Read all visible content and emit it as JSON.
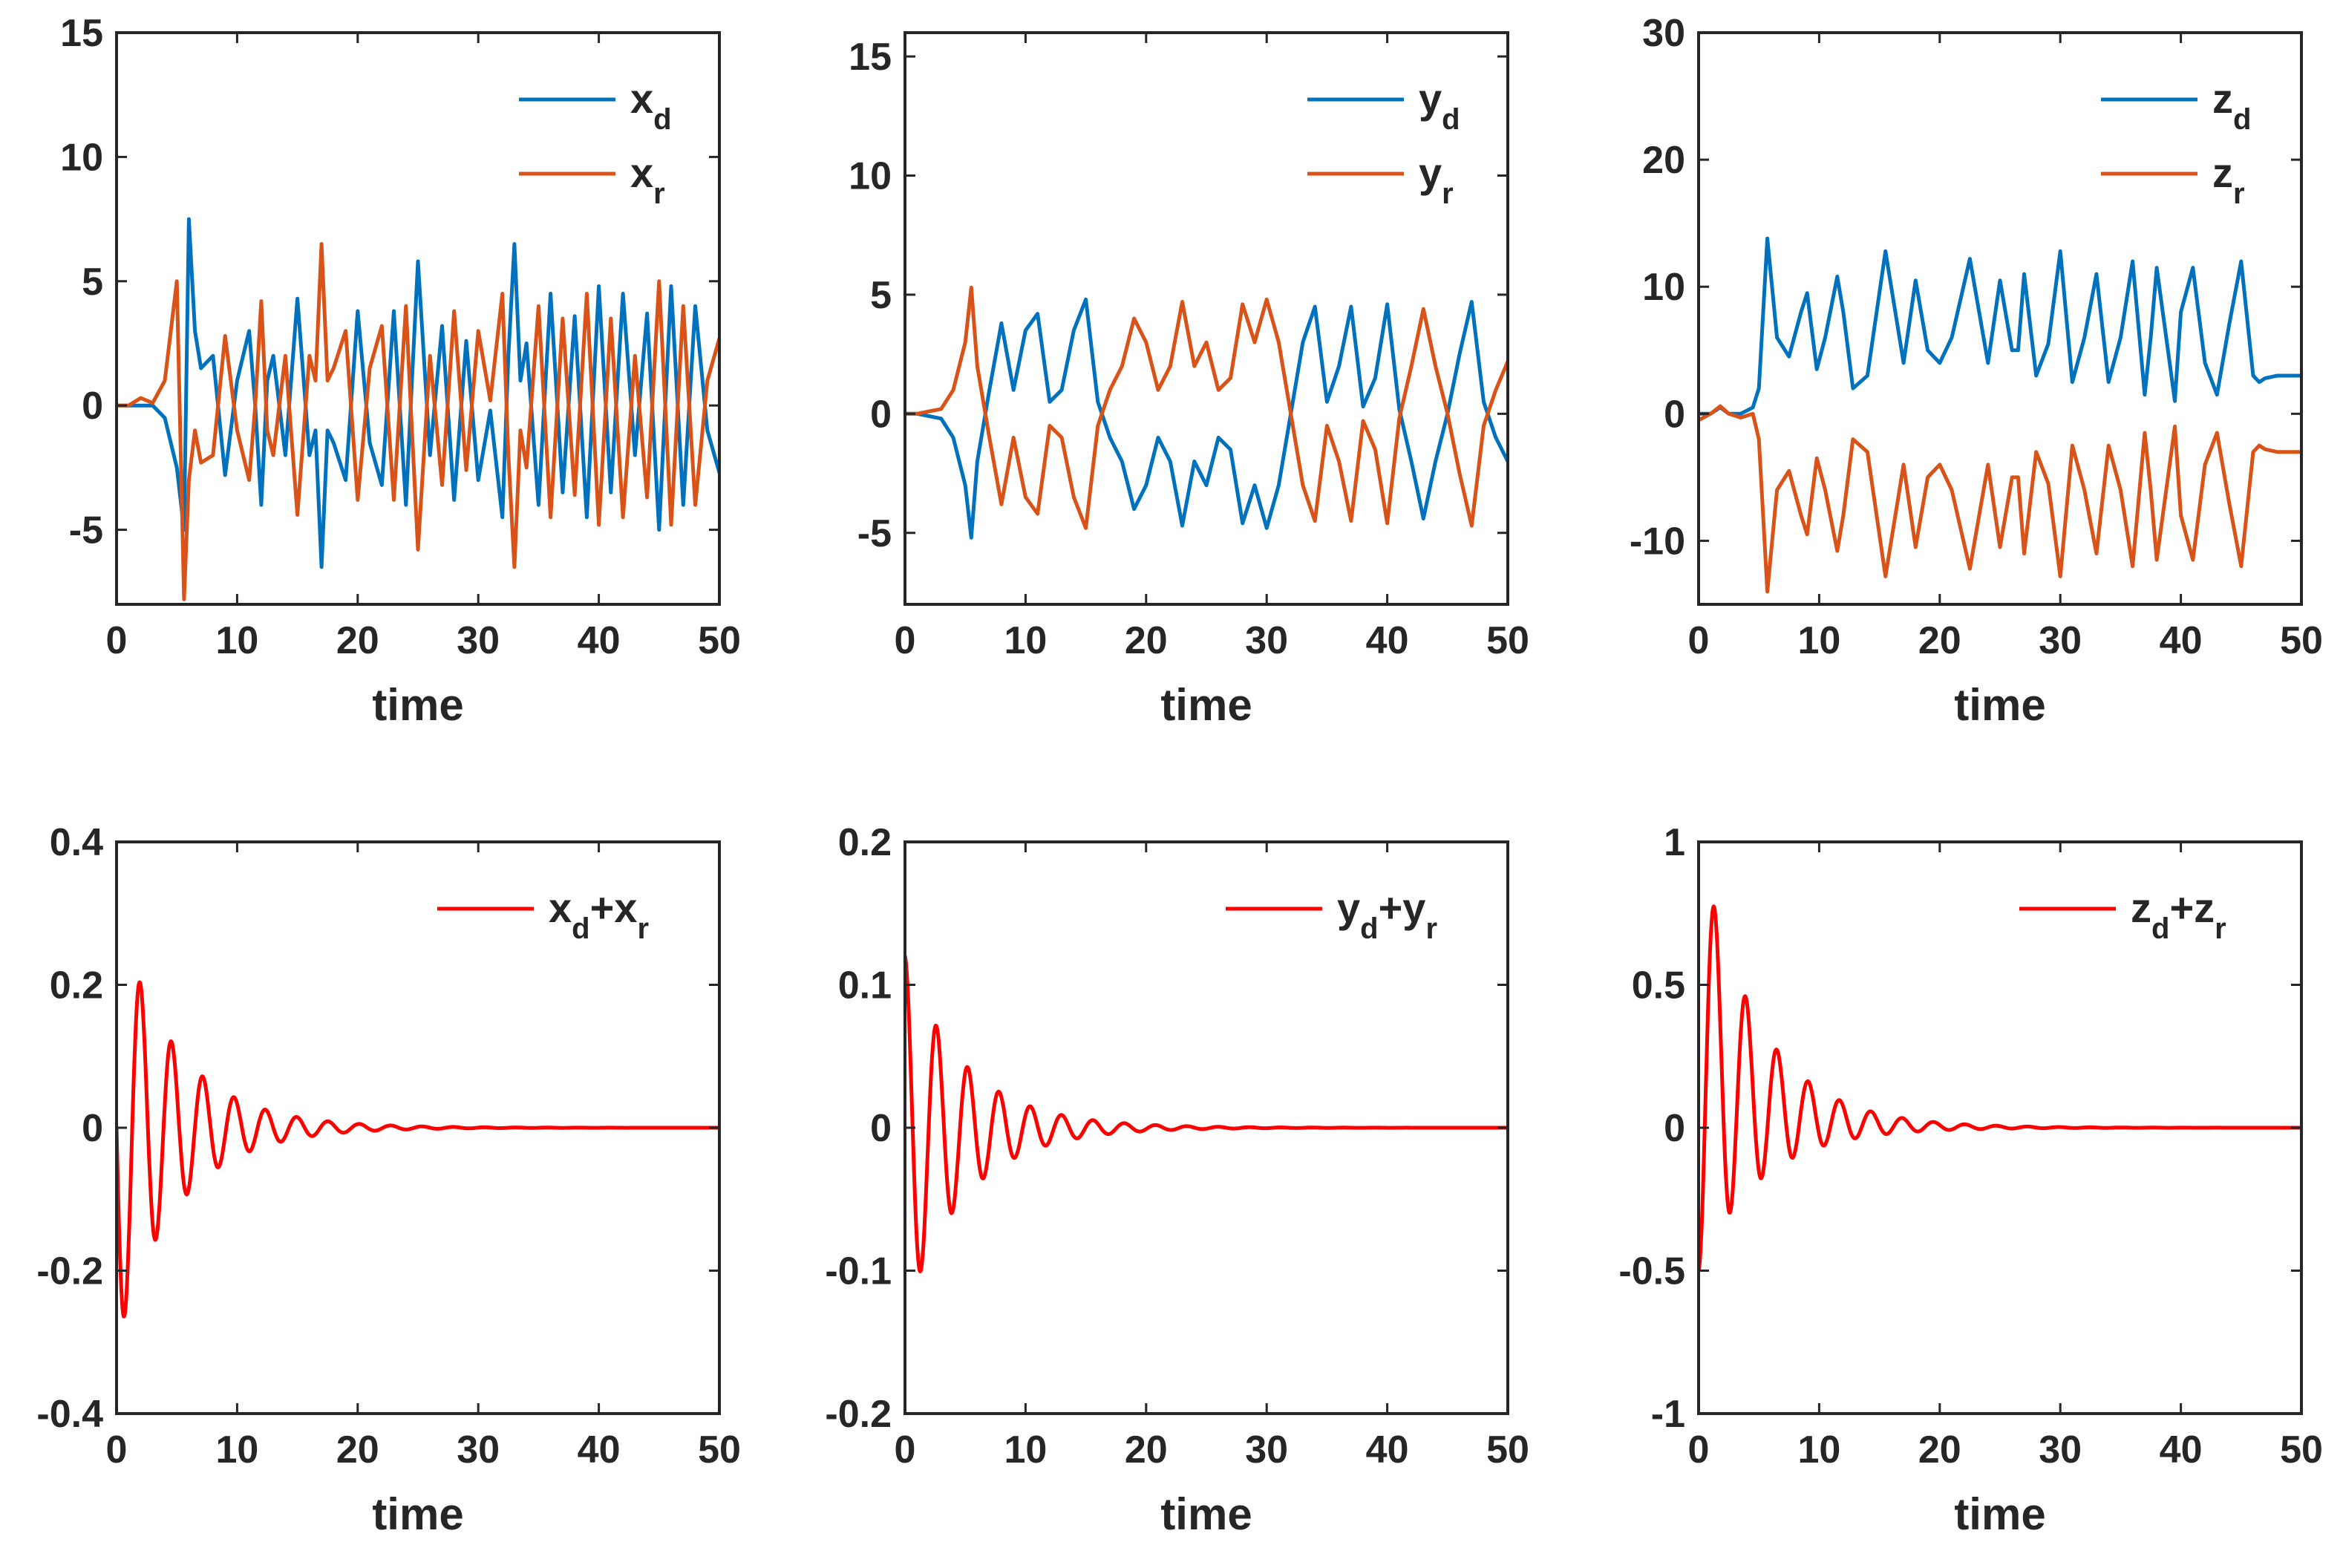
{
  "chart_data": [
    {
      "type": "line",
      "xlabel": "time",
      "xlim": [
        0,
        50
      ],
      "ylim": [
        -8,
        15
      ],
      "xticks": [
        "0",
        "10",
        "20",
        "30",
        "40",
        "50"
      ],
      "yticks": [
        "-5",
        "0",
        "5",
        "10",
        "15"
      ],
      "ytick_values": [
        -5,
        0,
        5,
        10,
        15
      ],
      "legend_location": "top-right",
      "series": [
        {
          "name": "x_d",
          "label": "x",
          "sub": "d",
          "color": "#0072BD",
          "x": [
            0,
            1,
            2,
            3,
            4,
            5,
            5.6,
            6,
            6.5,
            7,
            8,
            9,
            10,
            11,
            11.5,
            12,
            12.5,
            13,
            14,
            15,
            16,
            16.5,
            17,
            17.5,
            18,
            19,
            20,
            21,
            22,
            23,
            24,
            24.5,
            25,
            26,
            27,
            28,
            29,
            30,
            31,
            32,
            32.5,
            33,
            33.5,
            34,
            35,
            36,
            37,
            38,
            39,
            40,
            41,
            42,
            43,
            44,
            45,
            46,
            47,
            48,
            49,
            50
          ],
          "y": [
            0,
            0,
            0,
            0,
            -0.5,
            -2.5,
            -5,
            7.5,
            3,
            1.5,
            2,
            -2.8,
            1,
            3,
            0,
            -4,
            1,
            2,
            -2,
            4.3,
            -2,
            -1,
            -6.5,
            -1,
            -1.5,
            -3,
            3.8,
            -1.5,
            -3.2,
            3.8,
            -4,
            1,
            5.8,
            -2,
            3.2,
            -3.8,
            2.6,
            -3,
            -0.2,
            -4.5,
            2,
            6.5,
            1,
            2.5,
            -4,
            4.5,
            -3.5,
            3.6,
            -4.5,
            4.8,
            -3.5,
            4.5,
            -2,
            3.7,
            -5,
            4.8,
            -4,
            4,
            -1,
            -2.7
          ]
        },
        {
          "name": "x_r",
          "label": "x",
          "sub": "r",
          "color": "#D95319",
          "x": [
            0,
            1,
            2,
            3,
            4,
            5,
            5.6,
            6,
            6.5,
            7,
            8,
            9,
            10,
            11,
            11.5,
            12,
            12.5,
            13,
            14,
            15,
            16,
            16.5,
            17,
            17.5,
            18,
            19,
            20,
            21,
            22,
            23,
            24,
            24.5,
            25,
            26,
            27,
            28,
            29,
            30,
            31,
            32,
            32.5,
            33,
            33.5,
            34,
            35,
            36,
            37,
            38,
            39,
            40,
            41,
            42,
            43,
            44,
            45,
            46,
            47,
            48,
            49,
            50
          ],
          "y": [
            0,
            0,
            0.3,
            0.1,
            1,
            5,
            -7.8,
            -3,
            -1,
            -2.3,
            -2,
            2.8,
            -1,
            -3,
            0,
            4.2,
            -1,
            -2,
            2,
            -4.4,
            2,
            1,
            6.5,
            1,
            1.5,
            3,
            -3.8,
            1.5,
            3.2,
            -3.8,
            4,
            -1,
            -5.8,
            2,
            -3.2,
            3.8,
            -2.6,
            3,
            0.2,
            4.5,
            -2,
            -6.5,
            -1,
            -2.5,
            4,
            -4.5,
            3.5,
            -3.6,
            4.5,
            -4.8,
            3.5,
            -4.5,
            2,
            -3.7,
            5,
            -4.8,
            4,
            -4,
            1,
            2.7
          ]
        }
      ]
    },
    {
      "type": "line",
      "xlabel": "time",
      "xlim": [
        0,
        50
      ],
      "ylim": [
        -8,
        16
      ],
      "xticks": [
        "0",
        "10",
        "20",
        "30",
        "40",
        "50"
      ],
      "yticks": [
        "-5",
        "0",
        "5",
        "10",
        "15"
      ],
      "ytick_values": [
        -5,
        0,
        5,
        10,
        15
      ],
      "legend_location": "top-right",
      "series": [
        {
          "name": "y_d",
          "label": "y",
          "sub": "d",
          "color": "#0072BD",
          "x": [
            0,
            1,
            2,
            3,
            4,
            5,
            5.5,
            6,
            7,
            8,
            9,
            10,
            11,
            12,
            13,
            14,
            15,
            16,
            17,
            18,
            19,
            20,
            21,
            22,
            23,
            24,
            25,
            26,
            27,
            28,
            29,
            30,
            31,
            32,
            33,
            34,
            35,
            36,
            37,
            38,
            39,
            40,
            41,
            42,
            43,
            44,
            45,
            46,
            47,
            48,
            49,
            50
          ],
          "y": [
            0,
            0,
            -0.1,
            -0.2,
            -1,
            -3,
            -5.2,
            -2,
            1,
            3.8,
            1,
            3.5,
            4.2,
            0.5,
            1,
            3.5,
            4.8,
            0.5,
            -1,
            -2,
            -4,
            -3,
            -1,
            -2,
            -4.7,
            -2,
            -3,
            -1,
            -1.5,
            -4.6,
            -3,
            -4.8,
            -3,
            0,
            3,
            4.5,
            0.5,
            2,
            4.5,
            0.3,
            1.5,
            4.6,
            0.2,
            -2,
            -4.4,
            -2,
            0,
            2.5,
            4.7,
            0.5,
            -1,
            -2
          ]
        },
        {
          "name": "y_r",
          "label": "y",
          "sub": "r",
          "color": "#D95319",
          "x": [
            0,
            1,
            2,
            3,
            4,
            5,
            5.5,
            6,
            7,
            8,
            9,
            10,
            11,
            12,
            13,
            14,
            15,
            16,
            17,
            18,
            19,
            20,
            21,
            22,
            23,
            24,
            25,
            26,
            27,
            28,
            29,
            30,
            31,
            32,
            33,
            34,
            35,
            36,
            37,
            38,
            39,
            40,
            41,
            42,
            43,
            44,
            45,
            46,
            47,
            48,
            49,
            50
          ],
          "y": [
            0,
            0,
            0.1,
            0.2,
            1,
            3,
            5.3,
            2,
            -1,
            -3.8,
            -1,
            -3.5,
            -4.2,
            -0.5,
            -1,
            -3.5,
            -4.8,
            -0.5,
            1,
            2,
            4,
            3,
            1,
            2,
            4.7,
            2,
            3,
            1,
            1.5,
            4.6,
            3,
            4.8,
            3,
            0,
            -3,
            -4.5,
            -0.5,
            -2,
            -4.5,
            -0.3,
            -1.5,
            -4.6,
            -0.2,
            2,
            4.4,
            2,
            0,
            -2.5,
            -4.7,
            -0.5,
            1,
            2.2
          ]
        }
      ]
    },
    {
      "type": "line",
      "xlabel": "time",
      "xlim": [
        0,
        50
      ],
      "ylim": [
        -15,
        30
      ],
      "xticks": [
        "0",
        "10",
        "20",
        "30",
        "40",
        "50"
      ],
      "yticks": [
        "-10",
        "0",
        "10",
        "20",
        "30"
      ],
      "ytick_values": [
        -10,
        0,
        10,
        20,
        30
      ],
      "legend_location": "top-right",
      "series": [
        {
          "name": "z_d",
          "label": "z",
          "sub": "d",
          "color": "#0072BD",
          "x": [
            0,
            1,
            1.8,
            2.5,
            3.5,
            4.5,
            5,
            5.7,
            6.5,
            7.5,
            8.5,
            9,
            9.8,
            10.5,
            11.5,
            12,
            12.8,
            14,
            15.5,
            17,
            18,
            19,
            20,
            21,
            22.5,
            24,
            25,
            26,
            26.5,
            27,
            28,
            29,
            30,
            31,
            32,
            33,
            34,
            35,
            36,
            37,
            37.5,
            38,
            39.5,
            40,
            41,
            42,
            43,
            44,
            45,
            46,
            46.5,
            47,
            48,
            49,
            50
          ],
          "y": [
            0,
            0,
            0.5,
            0,
            0,
            0.5,
            2,
            13.8,
            6,
            4.5,
            8,
            9.5,
            3.5,
            6,
            10.8,
            8,
            2,
            3,
            12.8,
            4,
            10.5,
            5,
            4,
            6,
            12.2,
            4,
            10.5,
            5,
            5,
            11,
            3,
            5.5,
            12.8,
            2.5,
            6,
            11,
            2.5,
            6,
            12,
            1.5,
            6,
            11.5,
            1,
            8,
            11.5,
            4,
            1.5,
            7,
            12,
            3,
            2.5,
            2.8,
            3,
            3,
            3
          ]
        },
        {
          "name": "z_r",
          "label": "z",
          "sub": "r",
          "color": "#D95319",
          "x": [
            0,
            1,
            1.8,
            2.5,
            3.5,
            4.5,
            5,
            5.7,
            6.5,
            7.5,
            8.5,
            9,
            9.8,
            10.5,
            11.5,
            12,
            12.8,
            14,
            15.5,
            17,
            18,
            19,
            20,
            21,
            22.5,
            24,
            25,
            26,
            26.5,
            27,
            28,
            29,
            30,
            31,
            32,
            33,
            34,
            35,
            36,
            37,
            37.5,
            38,
            39.5,
            40,
            41,
            42,
            43,
            44,
            45,
            46,
            46.5,
            47,
            48,
            49,
            50
          ],
          "y": [
            -0.5,
            0,
            0.6,
            0,
            -0.3,
            0,
            -2,
            -14,
            -6,
            -4.5,
            -8,
            -9.5,
            -3.5,
            -6,
            -10.8,
            -8,
            -2,
            -3,
            -12.8,
            -4,
            -10.5,
            -5,
            -4,
            -6,
            -12.2,
            -4,
            -10.5,
            -5,
            -5,
            -11,
            -3,
            -5.5,
            -12.8,
            -2.5,
            -6,
            -11,
            -2.5,
            -6,
            -12,
            -1.5,
            -6,
            -11.5,
            -1,
            -8,
            -11.5,
            -4,
            -1.5,
            -7,
            -12,
            -3,
            -2.5,
            -2.8,
            -3,
            -3,
            -3
          ]
        }
      ]
    },
    {
      "type": "line",
      "xlabel": "time",
      "xlim": [
        0,
        50
      ],
      "ylim": [
        -0.4,
        0.4
      ],
      "xticks": [
        "0",
        "10",
        "20",
        "30",
        "40",
        "50"
      ],
      "yticks": [
        "-0.4",
        "-0.2",
        "0",
        "0.2",
        "0.4"
      ],
      "ytick_values": [
        -0.4,
        -0.2,
        0,
        0.2,
        0.4
      ],
      "legend_location": "top-right",
      "damped": {
        "y0": 0,
        "amp": 0.3,
        "decay": 0.2,
        "period": 2.6,
        "phase": -1.571
      },
      "series": [
        {
          "name": "x_d+x_r",
          "label": "x",
          "sub": "d",
          "label2": "+x",
          "sub2": "r",
          "color": "#FF0000"
        }
      ]
    },
    {
      "type": "line",
      "xlabel": "time",
      "xlim": [
        0,
        50
      ],
      "ylim": [
        -0.2,
        0.2
      ],
      "xticks": [
        "0",
        "10",
        "20",
        "30",
        "40",
        "50"
      ],
      "yticks": [
        "-0.2",
        "-0.1",
        "0",
        "0.1",
        "0.2"
      ],
      "ytick_values": [
        -0.2,
        -0.1,
        0,
        0.1,
        0.2
      ],
      "legend_location": "top-right",
      "damped": {
        "y0": 0.12,
        "amp": 0.125,
        "decay": 0.2,
        "period": 2.6,
        "phase": 0
      },
      "series": [
        {
          "name": "y_d+y_r",
          "label": "y",
          "sub": "d",
          "label2": "+y",
          "sub2": "r",
          "color": "#FF0000"
        }
      ]
    },
    {
      "type": "line",
      "xlabel": "time",
      "xlim": [
        0,
        50
      ],
      "ylim": [
        -1,
        1
      ],
      "xticks": [
        "0",
        "10",
        "20",
        "30",
        "40",
        "50"
      ],
      "yticks": [
        "-1",
        "-0.5",
        "0",
        "0.5",
        "1"
      ],
      "ytick_values": [
        -1,
        -0.5,
        0,
        0.5,
        1
      ],
      "legend_location": "top-right",
      "damped": {
        "y0": -0.5,
        "amp": 0.75,
        "decay": 0.2,
        "period": 2.6,
        "phase": 3.14159
      },
      "series": [
        {
          "name": "z_d+z_r",
          "label": "z",
          "sub": "d",
          "label2": "+z",
          "sub2": "r",
          "color": "#FF0000"
        }
      ]
    }
  ]
}
